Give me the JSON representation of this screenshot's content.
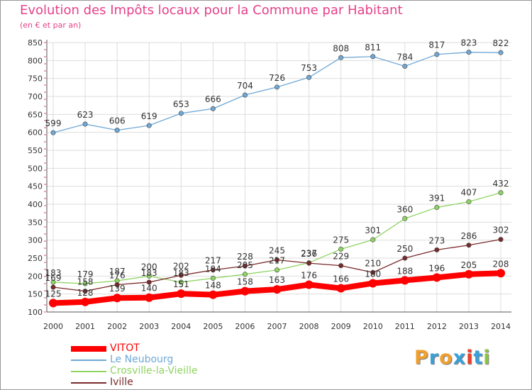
{
  "title": "Evolution des Impôts locaux pour la Commune par Habitant",
  "subtitle": "(en € et par an)",
  "logo": {
    "letters": [
      "P",
      "r",
      "o",
      "x",
      "i",
      "t",
      "i"
    ],
    "colors": [
      "#f0a030",
      "#3aa0d8",
      "#f0a030",
      "#3aa0d8",
      "#e8402a",
      "#3aa0d8",
      "#8cc63f"
    ]
  },
  "chart_data": {
    "type": "line",
    "title": "Evolution des Impôts locaux pour la Commune par Habitant",
    "ylabel": "(en € et par an)",
    "xlabel": "",
    "x": [
      "2000",
      "2001",
      "2002",
      "2003",
      "2004",
      "2005",
      "2006",
      "2007",
      "2008",
      "2009",
      "2010",
      "2011",
      "2012",
      "2013",
      "2014"
    ],
    "ylim": [
      100,
      850
    ],
    "yticks": [
      "100",
      "150",
      "200",
      "250",
      "300",
      "350",
      "400",
      "450",
      "500",
      "550",
      "600",
      "650",
      "700",
      "750",
      "800",
      "850"
    ],
    "grid": true,
    "legend_position": "bottom-left",
    "series": [
      {
        "name": "VITOT",
        "color": "#ff0000",
        "values": [
          125,
          128,
          139,
          140,
          151,
          148,
          158,
          163,
          176,
          166,
          180,
          188,
          196,
          205,
          208
        ],
        "labels": [
          "125",
          "128",
          "139",
          "140",
          "151",
          "148",
          "158",
          "163",
          "176",
          "166",
          "180",
          "188",
          "196",
          "205",
          "208"
        ]
      },
      {
        "name": "Le Neubourg",
        "color": "#6fa8d6",
        "values": [
          599,
          623,
          606,
          619,
          653,
          666,
          704,
          726,
          753,
          808,
          811,
          784,
          817,
          823,
          822
        ],
        "labels": [
          "599",
          "623",
          "606",
          "619",
          "653",
          "666",
          "704",
          "726",
          "753",
          "808",
          "811",
          "784",
          "817",
          "823",
          "822"
        ]
      },
      {
        "name": "Crosville-la-Vieille",
        "color": "#8ed460",
        "values": [
          183,
          179,
          187,
          200,
          183,
          194,
          205,
          217,
          237,
          275,
          301,
          360,
          391,
          407,
          432
        ],
        "labels": [
          "183",
          "179",
          "187",
          "200",
          "183",
          "194",
          "205",
          "217",
          "237",
          "275",
          "301",
          "360",
          "391",
          "407",
          "432"
        ]
      },
      {
        "name": "Iville",
        "color": "#7a2a2a",
        "values": [
          169,
          158,
          176,
          183,
          202,
          217,
          228,
          245,
          236,
          229,
          210,
          250,
          273,
          286,
          302
        ],
        "labels": [
          "169",
          "158",
          "176",
          "183",
          "202",
          "217",
          "228",
          "245",
          "236",
          "229",
          "210",
          "250",
          "273",
          "286",
          "302"
        ]
      }
    ]
  }
}
